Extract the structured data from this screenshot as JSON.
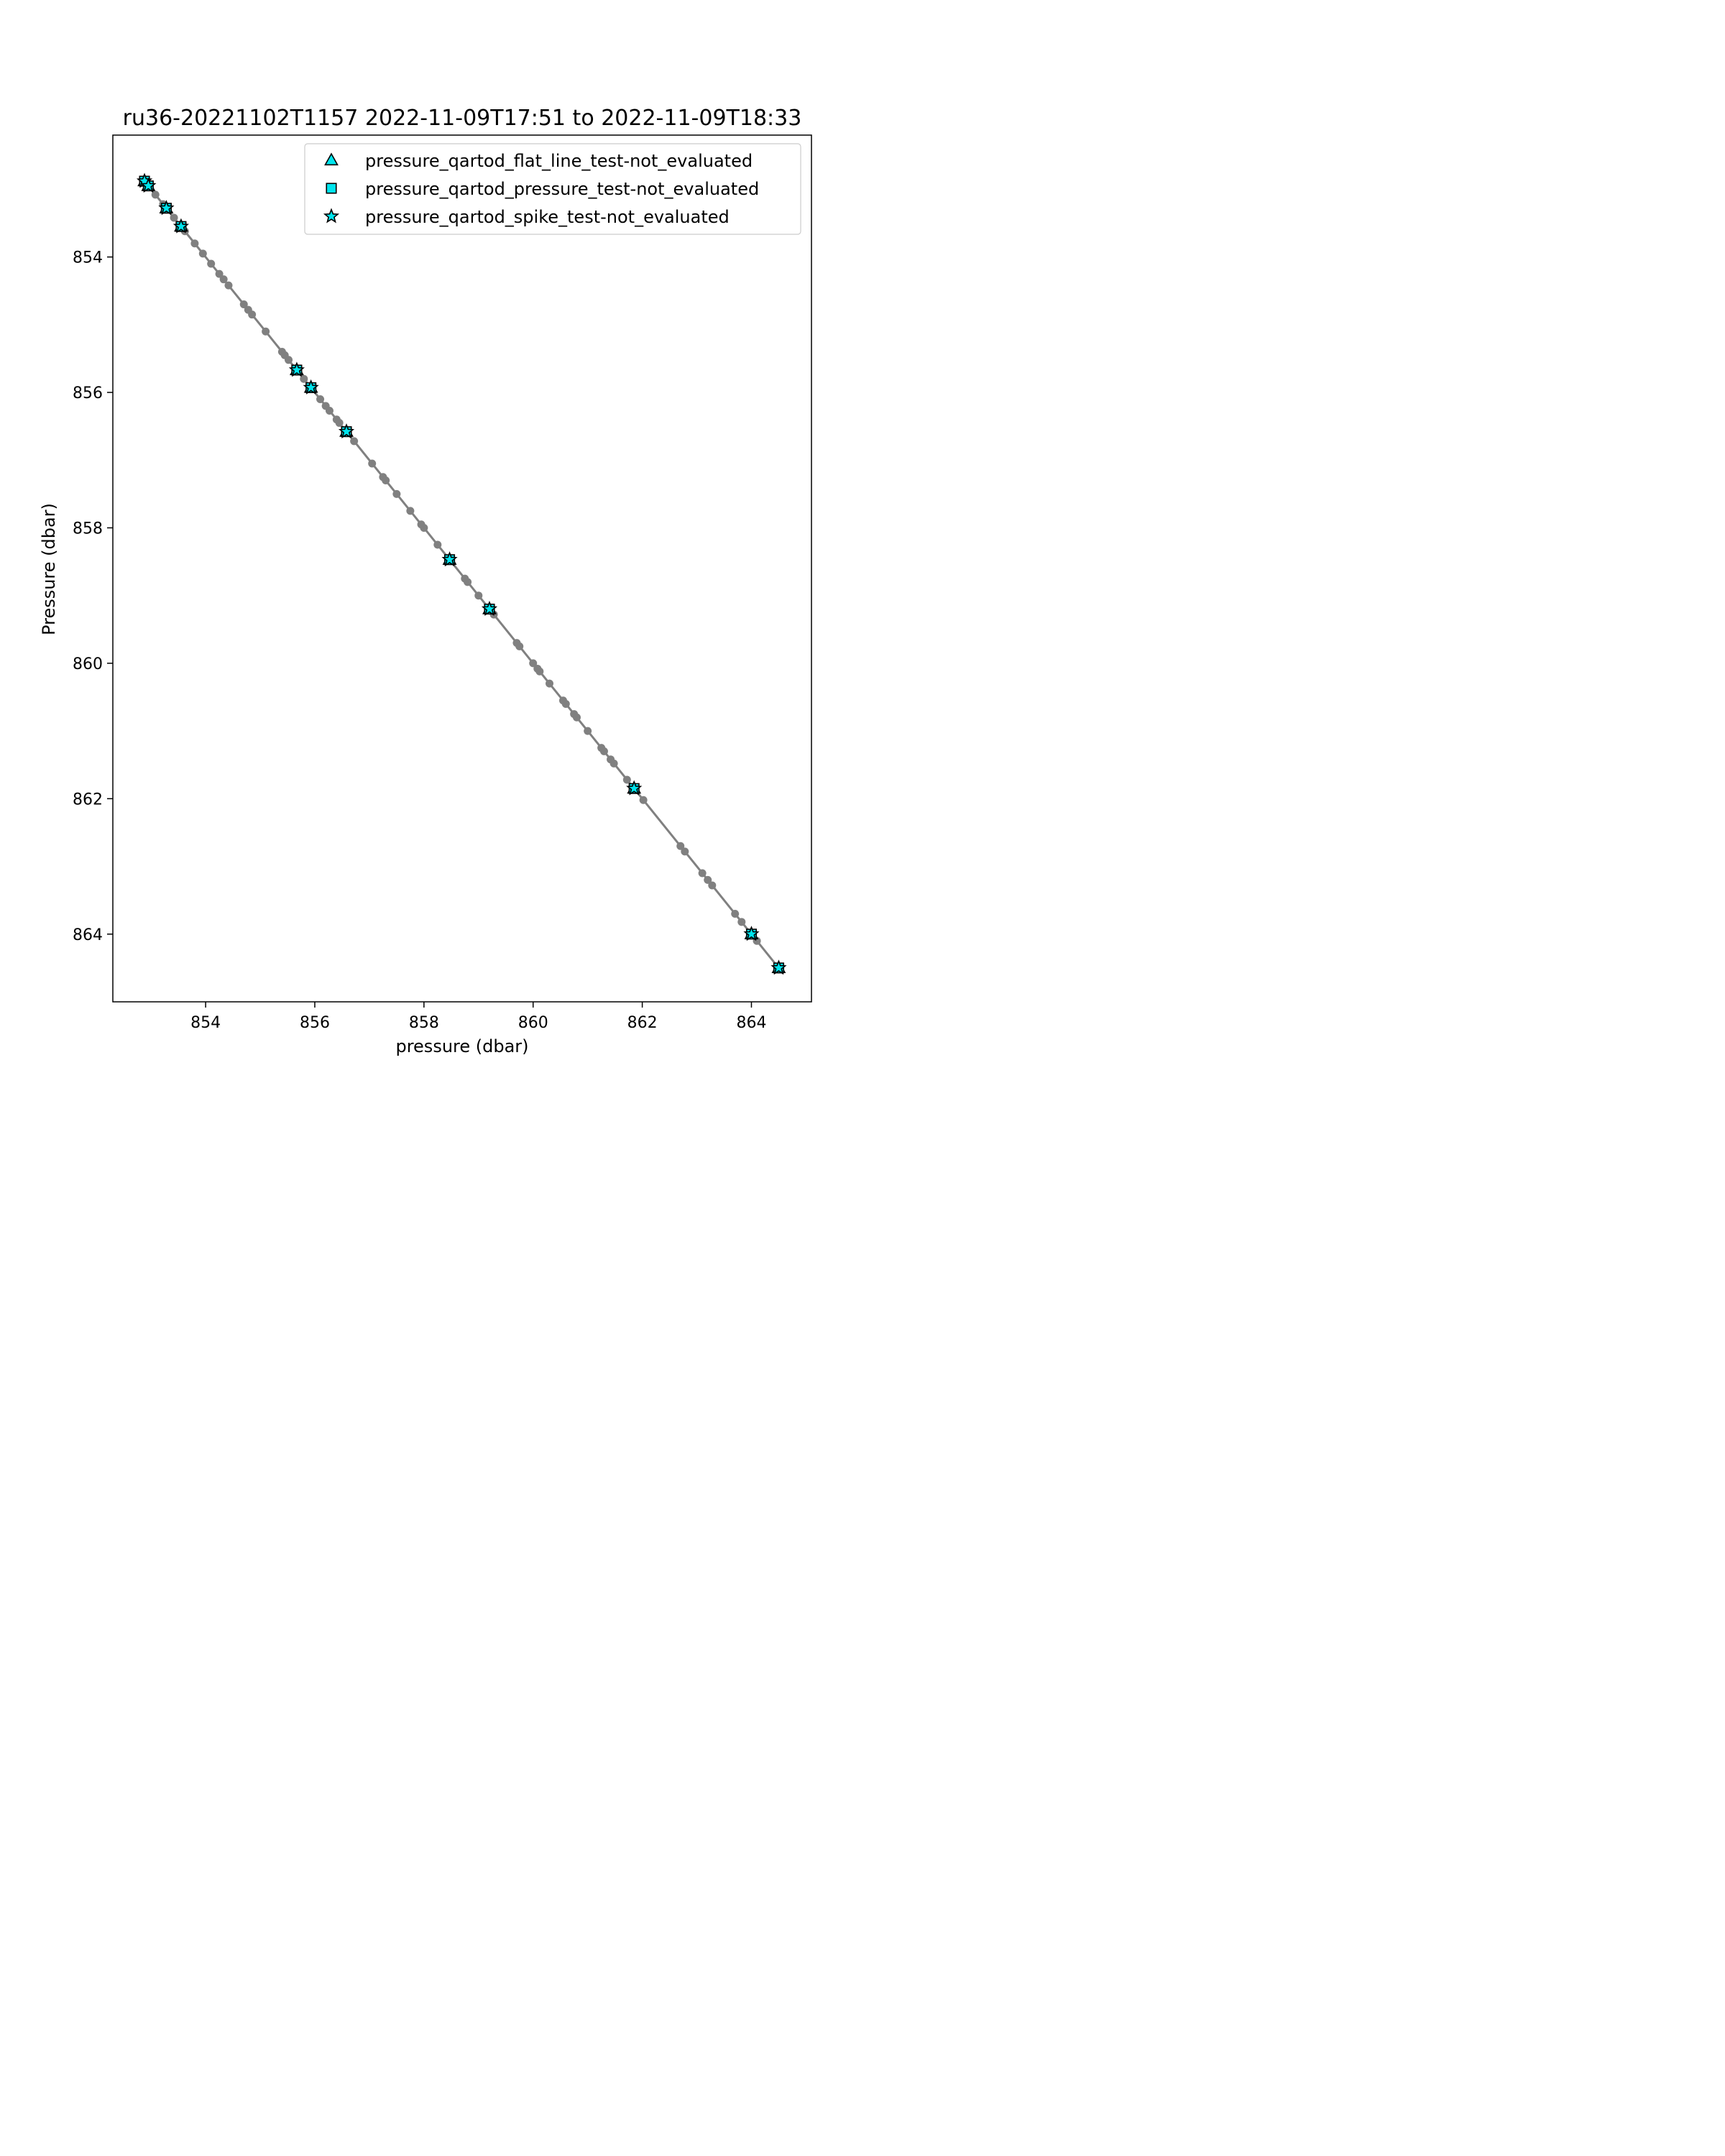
{
  "chart_data": {
    "type": "scatter",
    "title": "ru36-20221102T1157 2022-11-09T17:51 to 2022-11-09T18:33",
    "xlabel": "pressure (dbar)",
    "ylabel": "Pressure (dbar)",
    "xlim": [
      852.3,
      865.1
    ],
    "ylim": [
      865.0,
      852.2
    ],
    "y_inverted": true,
    "xticks": [
      854,
      856,
      858,
      860,
      862,
      864
    ],
    "yticks": [
      854,
      856,
      858,
      860,
      862,
      864
    ],
    "grid": false,
    "legend_position": "upper right",
    "line_color": "#808080",
    "flag_color": "#00e5ee",
    "line": {
      "x": [
        852.88,
        852.95,
        853.08,
        853.22,
        853.28,
        853.42,
        853.55,
        853.62,
        853.8,
        853.95,
        854.1,
        854.25,
        854.33,
        854.42,
        854.7,
        854.78,
        854.85,
        855.1,
        855.4,
        855.45,
        855.52,
        855.67,
        855.8,
        855.93,
        856.1,
        856.2,
        856.27,
        856.4,
        856.45,
        856.58,
        856.72,
        857.05,
        857.25,
        857.3,
        857.5,
        857.75,
        857.95,
        858.0,
        858.25,
        858.47,
        858.75,
        858.8,
        859.0,
        859.2,
        859.28,
        859.7,
        859.75,
        860.0,
        860.08,
        860.12,
        860.3,
        860.55,
        860.6,
        860.75,
        860.8,
        861.0,
        861.25,
        861.3,
        861.42,
        861.48,
        861.72,
        861.85,
        862.02,
        862.7,
        862.78,
        863.1,
        863.2,
        863.28,
        863.7,
        863.82,
        864.0,
        864.1,
        864.5
      ],
      "y": [
        852.88,
        852.95,
        853.08,
        853.22,
        853.28,
        853.42,
        853.55,
        853.62,
        853.8,
        853.95,
        854.1,
        854.25,
        854.33,
        854.42,
        854.7,
        854.78,
        854.85,
        855.1,
        855.4,
        855.45,
        855.52,
        855.67,
        855.8,
        855.93,
        856.1,
        856.2,
        856.27,
        856.4,
        856.45,
        856.58,
        856.72,
        857.05,
        857.25,
        857.3,
        857.5,
        857.75,
        857.95,
        858.0,
        858.25,
        858.47,
        858.75,
        858.8,
        859.0,
        859.2,
        859.28,
        859.7,
        859.75,
        860.0,
        860.08,
        860.12,
        860.3,
        860.55,
        860.6,
        860.75,
        860.8,
        861.0,
        861.25,
        861.3,
        861.42,
        861.48,
        861.72,
        861.85,
        862.02,
        862.7,
        862.78,
        863.1,
        863.2,
        863.28,
        863.7,
        863.82,
        864.0,
        864.1,
        864.5
      ]
    },
    "series": [
      {
        "name": "pressure_qartod_flat_line_test-not_evaluated",
        "marker": "triangle",
        "x": [
          852.88,
          852.95,
          853.28,
          853.55,
          855.67,
          855.93,
          856.58,
          858.47,
          859.2,
          861.85,
          864.0,
          864.5
        ],
        "y": [
          852.88,
          852.95,
          853.28,
          853.55,
          855.67,
          855.93,
          856.58,
          858.47,
          859.2,
          861.85,
          864.0,
          864.5
        ]
      },
      {
        "name": "pressure_qartod_pressure_test-not_evaluated",
        "marker": "square",
        "x": [
          852.88,
          852.95,
          853.28,
          853.55,
          855.67,
          855.93,
          856.58,
          858.47,
          859.2,
          861.85,
          864.0,
          864.5
        ],
        "y": [
          852.88,
          852.95,
          853.28,
          853.55,
          855.67,
          855.93,
          856.58,
          858.47,
          859.2,
          861.85,
          864.0,
          864.5
        ]
      },
      {
        "name": "pressure_qartod_spike_test-not_evaluated",
        "marker": "star",
        "x": [
          852.88,
          852.95,
          853.28,
          853.55,
          855.67,
          855.93,
          856.58,
          858.47,
          859.2,
          861.85,
          864.0,
          864.5
        ],
        "y": [
          852.88,
          852.95,
          853.28,
          853.55,
          855.67,
          855.93,
          856.58,
          858.47,
          859.2,
          861.85,
          864.0,
          864.5
        ]
      }
    ]
  }
}
